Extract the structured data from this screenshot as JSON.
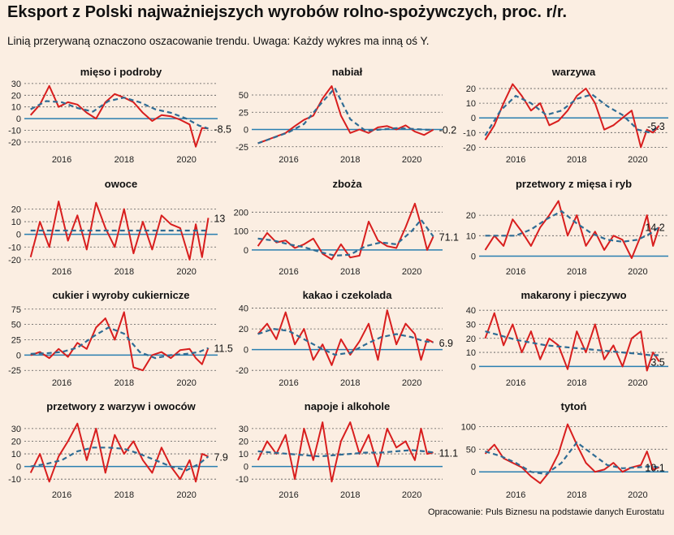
{
  "header": {
    "title": "Eksport z Polski najważniejszych wyrobów rolno-spożywczych, proc. r/r.",
    "subtitle": "Linią przerywaną oznaczono oszacowanie trendu. Uwaga: Każdy wykres ma inną oś Y.",
    "source": "Opracowanie: Puls Biznesu na podstawie danych Eurostatu"
  },
  "colors": {
    "actual_line": "#d81e1e",
    "trend_line": "#2f6c94",
    "zero_line": "#2a7fb0",
    "grid": "#555555",
    "background": "#fbeee2"
  },
  "chart_data": [
    {
      "type": "line",
      "title": "mięso i podroby",
      "end_label": "-8.5",
      "yticks": [
        -20,
        -10,
        0,
        10,
        20,
        30
      ],
      "ylim": [
        -27,
        32
      ],
      "xticks": [
        "2016",
        "2018",
        "2020"
      ],
      "actual": {
        "x": [
          2015.0,
          2015.3,
          2015.6,
          2015.9,
          2016.2,
          2016.5,
          2016.8,
          2017.1,
          2017.4,
          2017.7,
          2018.0,
          2018.3,
          2018.6,
          2018.9,
          2019.2,
          2019.5,
          2019.8,
          2020.1,
          2020.3,
          2020.5,
          2020.7
        ],
        "y": [
          3,
          12,
          28,
          10,
          14,
          12,
          5,
          0,
          14,
          21,
          18,
          14,
          5,
          -2,
          3,
          2,
          -1,
          -5,
          -24,
          -8,
          -8.5
        ]
      },
      "trend": {
        "x": [
          2015.0,
          2015.5,
          2016.0,
          2016.5,
          2017.0,
          2017.5,
          2018.0,
          2018.5,
          2019.0,
          2019.5,
          2020.0,
          2020.4,
          2020.7
        ],
        "y": [
          8,
          15,
          14,
          9,
          6,
          15,
          18,
          14,
          8,
          5,
          0,
          -6,
          -8.5
        ]
      }
    },
    {
      "type": "line",
      "title": "nabiał",
      "end_label": "-0.2",
      "yticks": [
        -25,
        0,
        25,
        50
      ],
      "ylim": [
        -30,
        70
      ],
      "xticks": [
        "2016",
        "2018",
        "2020"
      ],
      "actual": {
        "x": [
          2015.0,
          2015.3,
          2015.6,
          2015.9,
          2016.2,
          2016.5,
          2016.8,
          2017.1,
          2017.4,
          2017.7,
          2018.0,
          2018.3,
          2018.6,
          2018.9,
          2019.2,
          2019.5,
          2019.8,
          2020.1,
          2020.4,
          2020.7
        ],
        "y": [
          -20,
          -15,
          -10,
          -5,
          5,
          14,
          20,
          45,
          63,
          20,
          -5,
          0,
          -5,
          3,
          5,
          0,
          6,
          -3,
          -8,
          -0.2
        ]
      },
      "trend": {
        "x": [
          2015.0,
          2015.5,
          2016.0,
          2016.5,
          2017.0,
          2017.5,
          2018.0,
          2018.5,
          2019.0,
          2019.5,
          2020.0,
          2020.5,
          2020.7
        ],
        "y": [
          -20,
          -12,
          -4,
          8,
          35,
          60,
          15,
          -2,
          0,
          2,
          1,
          -0.5,
          -0.2
        ]
      }
    },
    {
      "type": "line",
      "title": "warzywa",
      "end_label": "-5.3",
      "yticks": [
        -20,
        -10,
        0,
        10,
        20
      ],
      "ylim": [
        -22,
        25
      ],
      "xticks": [
        "2016",
        "2018",
        "2020"
      ],
      "actual": {
        "x": [
          2015.0,
          2015.3,
          2015.6,
          2015.9,
          2016.2,
          2016.5,
          2016.8,
          2017.1,
          2017.4,
          2017.7,
          2018.0,
          2018.3,
          2018.6,
          2018.9,
          2019.2,
          2019.5,
          2019.8,
          2020.1,
          2020.3,
          2020.5,
          2020.7
        ],
        "y": [
          -15,
          -5,
          10,
          23,
          15,
          5,
          10,
          -5,
          -2,
          5,
          15,
          20,
          10,
          -8,
          -5,
          0,
          5,
          -20,
          -8,
          -10,
          -5.3
        ]
      },
      "trend": {
        "x": [
          2015.0,
          2015.5,
          2016.0,
          2016.5,
          2017.0,
          2017.5,
          2018.0,
          2018.5,
          2019.0,
          2019.5,
          2020.0,
          2020.4,
          2020.7
        ],
        "y": [
          -12,
          5,
          15,
          10,
          2,
          5,
          13,
          16,
          8,
          2,
          -8,
          -10,
          -5.3
        ]
      }
    },
    {
      "type": "line",
      "title": "owoce",
      "end_label": "13",
      "yticks": [
        -20,
        -10,
        0,
        10,
        20
      ],
      "ylim": [
        -22,
        28
      ],
      "xticks": [
        "2016",
        "2018",
        "2020"
      ],
      "actual": {
        "x": [
          2015.0,
          2015.3,
          2015.6,
          2015.9,
          2016.2,
          2016.5,
          2016.8,
          2017.1,
          2017.4,
          2017.7,
          2018.0,
          2018.3,
          2018.6,
          2018.9,
          2019.2,
          2019.5,
          2019.8,
          2020.1,
          2020.3,
          2020.5,
          2020.7
        ],
        "y": [
          -18,
          10,
          -10,
          26,
          -5,
          15,
          -12,
          25,
          5,
          -10,
          20,
          -15,
          10,
          -12,
          15,
          8,
          5,
          -20,
          8,
          -18,
          13
        ]
      },
      "trend": {
        "x": [
          2015.0,
          2016.0,
          2017.0,
          2018.0,
          2019.0,
          2020.0,
          2020.7
        ],
        "y": [
          3,
          3,
          3,
          3,
          3,
          3,
          3
        ]
      }
    },
    {
      "type": "line",
      "title": "zboża",
      "end_label": "71.1",
      "yticks": [
        0,
        100,
        200
      ],
      "ylim": [
        -65,
        270
      ],
      "xticks": [
        "2016",
        "2018",
        "2020"
      ],
      "actual": {
        "x": [
          2015.0,
          2015.3,
          2015.6,
          2015.9,
          2016.2,
          2016.5,
          2016.8,
          2017.1,
          2017.4,
          2017.7,
          2018.0,
          2018.3,
          2018.6,
          2018.9,
          2019.2,
          2019.5,
          2019.8,
          2020.1,
          2020.3,
          2020.5,
          2020.7
        ],
        "y": [
          20,
          90,
          40,
          50,
          10,
          30,
          60,
          -20,
          -50,
          30,
          -40,
          -30,
          150,
          50,
          20,
          10,
          120,
          245,
          130,
          0,
          71.1
        ]
      },
      "trend": {
        "x": [
          2015.0,
          2015.5,
          2016.0,
          2016.5,
          2017.0,
          2017.5,
          2018.0,
          2018.5,
          2019.0,
          2019.5,
          2020.0,
          2020.3,
          2020.7
        ],
        "y": [
          60,
          50,
          30,
          15,
          -10,
          -30,
          -25,
          20,
          40,
          30,
          100,
          160,
          71.1
        ]
      }
    },
    {
      "type": "line",
      "title": "przetwory z mięsa i ryb",
      "end_label": "14.2",
      "yticks": [
        0,
        10,
        20
      ],
      "ylim": [
        -3,
        28
      ],
      "xticks": [
        "2016",
        "2018",
        "2020"
      ],
      "actual": {
        "x": [
          2015.0,
          2015.3,
          2015.6,
          2015.9,
          2016.2,
          2016.5,
          2016.8,
          2017.1,
          2017.4,
          2017.7,
          2018.0,
          2018.3,
          2018.6,
          2018.9,
          2019.2,
          2019.5,
          2019.8,
          2020.1,
          2020.3,
          2020.5,
          2020.7
        ],
        "y": [
          3,
          10,
          5,
          18,
          12,
          5,
          14,
          20,
          27,
          10,
          20,
          5,
          12,
          3,
          10,
          8,
          -1,
          10,
          20,
          5,
          14.2
        ]
      },
      "trend": {
        "x": [
          2015.0,
          2015.5,
          2016.0,
          2016.5,
          2017.0,
          2017.5,
          2018.0,
          2018.5,
          2019.0,
          2019.5,
          2020.0,
          2020.4,
          2020.7
        ],
        "y": [
          10,
          10,
          10,
          13,
          18,
          22,
          16,
          11,
          8,
          7,
          8,
          11,
          14.2
        ]
      }
    },
    {
      "type": "line",
      "title": "cukier i wyroby cukiernicze",
      "end_label": "11.5",
      "yticks": [
        -25,
        0,
        25,
        50,
        75
      ],
      "ylim": [
        -30,
        80
      ],
      "xticks": [
        "2016",
        "2018",
        "2020"
      ],
      "actual": {
        "x": [
          2015.0,
          2015.3,
          2015.6,
          2015.9,
          2016.2,
          2016.5,
          2016.8,
          2017.1,
          2017.4,
          2017.7,
          2018.0,
          2018.3,
          2018.6,
          2018.9,
          2019.2,
          2019.5,
          2019.8,
          2020.1,
          2020.3,
          2020.5,
          2020.7
        ],
        "y": [
          0,
          5,
          -5,
          10,
          -3,
          20,
          10,
          45,
          60,
          25,
          70,
          -20,
          -25,
          0,
          5,
          -5,
          8,
          10,
          -5,
          -15,
          11.5
        ]
      },
      "trend": {
        "x": [
          2015.0,
          2015.5,
          2016.0,
          2016.5,
          2017.0,
          2017.5,
          2018.0,
          2018.5,
          2019.0,
          2019.5,
          2020.0,
          2020.4,
          2020.7
        ],
        "y": [
          2,
          3,
          5,
          12,
          30,
          45,
          35,
          5,
          -5,
          0,
          2,
          5,
          11.5
        ]
      }
    },
    {
      "type": "line",
      "title": "kakao i czekolada",
      "end_label": "6.9",
      "yticks": [
        -20,
        0,
        20,
        40
      ],
      "ylim": [
        -23,
        42
      ],
      "xticks": [
        "2016",
        "2018",
        "2020"
      ],
      "actual": {
        "x": [
          2015.0,
          2015.3,
          2015.6,
          2015.9,
          2016.2,
          2016.5,
          2016.8,
          2017.1,
          2017.4,
          2017.7,
          2018.0,
          2018.3,
          2018.6,
          2018.9,
          2019.2,
          2019.5,
          2019.8,
          2020.1,
          2020.3,
          2020.5,
          2020.7
        ],
        "y": [
          15,
          25,
          10,
          36,
          5,
          20,
          -10,
          5,
          -15,
          10,
          -5,
          8,
          25,
          -10,
          38,
          5,
          25,
          15,
          -10,
          10,
          6.9
        ]
      },
      "trend": {
        "x": [
          2015.0,
          2015.5,
          2016.0,
          2016.5,
          2017.0,
          2017.5,
          2018.0,
          2018.5,
          2019.0,
          2019.5,
          2020.0,
          2020.4,
          2020.7
        ],
        "y": [
          15,
          20,
          18,
          10,
          2,
          -5,
          -3,
          5,
          12,
          15,
          12,
          8,
          6.9
        ]
      }
    },
    {
      "type": "line",
      "title": "makarony i pieczywo",
      "end_label": "3.5",
      "yticks": [
        0,
        10,
        20,
        30,
        40
      ],
      "ylim": [
        -5,
        43
      ],
      "xticks": [
        "2016",
        "2018",
        "2020"
      ],
      "actual": {
        "x": [
          2015.0,
          2015.3,
          2015.6,
          2015.9,
          2016.2,
          2016.5,
          2016.8,
          2017.1,
          2017.4,
          2017.7,
          2018.0,
          2018.3,
          2018.6,
          2018.9,
          2019.2,
          2019.5,
          2019.8,
          2020.1,
          2020.3,
          2020.5,
          2020.7
        ],
        "y": [
          20,
          38,
          15,
          30,
          10,
          25,
          5,
          20,
          15,
          -2,
          25,
          10,
          30,
          5,
          15,
          0,
          20,
          25,
          -3,
          10,
          3.5
        ]
      },
      "trend": {
        "x": [
          2015.0,
          2015.5,
          2016.0,
          2016.5,
          2017.0,
          2017.5,
          2018.0,
          2018.5,
          2019.0,
          2019.5,
          2020.0,
          2020.4,
          2020.7
        ],
        "y": [
          25,
          22,
          19,
          17,
          15,
          14,
          13,
          12,
          11,
          10,
          9,
          8,
          8
        ]
      }
    },
    {
      "type": "line",
      "title": "przetwory z warzyw i owoców",
      "end_label": "7.9",
      "yticks": [
        -10,
        0,
        10,
        20,
        30
      ],
      "ylim": [
        -15,
        37
      ],
      "xticks": [
        "2016",
        "2018",
        "2020"
      ],
      "actual": {
        "x": [
          2015.0,
          2015.3,
          2015.6,
          2015.9,
          2016.2,
          2016.5,
          2016.8,
          2017.1,
          2017.4,
          2017.7,
          2018.0,
          2018.3,
          2018.6,
          2018.9,
          2019.2,
          2019.5,
          2019.8,
          2020.1,
          2020.3,
          2020.5,
          2020.7
        ],
        "y": [
          -5,
          10,
          -12,
          8,
          20,
          34,
          5,
          30,
          -5,
          25,
          10,
          20,
          5,
          -5,
          15,
          0,
          -10,
          5,
          -12,
          10,
          7.9
        ]
      },
      "trend": {
        "x": [
          2015.0,
          2015.5,
          2016.0,
          2016.5,
          2017.0,
          2017.5,
          2018.0,
          2018.5,
          2019.0,
          2019.5,
          2020.0,
          2020.4,
          2020.7
        ],
        "y": [
          0,
          2,
          5,
          12,
          15,
          15,
          14,
          10,
          5,
          0,
          -3,
          2,
          7.9
        ]
      }
    },
    {
      "type": "line",
      "title": "napoje i alkohole",
      "end_label": "11.1",
      "yticks": [
        -10,
        0,
        10,
        20,
        30
      ],
      "ylim": [
        -15,
        37
      ],
      "xticks": [
        "2016",
        "2018",
        "2020"
      ],
      "actual": {
        "x": [
          2015.0,
          2015.3,
          2015.6,
          2015.9,
          2016.2,
          2016.5,
          2016.8,
          2017.1,
          2017.4,
          2017.7,
          2018.0,
          2018.3,
          2018.6,
          2018.9,
          2019.2,
          2019.5,
          2019.8,
          2020.1,
          2020.3,
          2020.5,
          2020.7
        ],
        "y": [
          5,
          20,
          10,
          25,
          -10,
          30,
          5,
          35,
          -12,
          20,
          35,
          10,
          25,
          0,
          30,
          15,
          20,
          5,
          30,
          10,
          11.1
        ]
      },
      "trend": {
        "x": [
          2015.0,
          2015.5,
          2016.0,
          2016.5,
          2017.0,
          2017.5,
          2018.0,
          2018.5,
          2019.0,
          2019.5,
          2020.0,
          2020.4,
          2020.7
        ],
        "y": [
          12,
          11,
          10,
          9,
          8,
          9,
          10,
          11,
          11,
          12,
          13,
          12,
          11.1
        ]
      }
    },
    {
      "type": "line",
      "title": "tytoń",
      "end_label": "10.1",
      "yticks": [
        0,
        50,
        100
      ],
      "ylim": [
        -30,
        115
      ],
      "xticks": [
        "2016",
        "2018",
        "2020"
      ],
      "actual": {
        "x": [
          2015.0,
          2015.3,
          2015.6,
          2015.9,
          2016.2,
          2016.5,
          2016.8,
          2017.1,
          2017.4,
          2017.7,
          2018.0,
          2018.3,
          2018.6,
          2018.9,
          2019.2,
          2019.5,
          2019.8,
          2020.1,
          2020.3,
          2020.5,
          2020.7
        ],
        "y": [
          40,
          60,
          30,
          20,
          10,
          -10,
          -25,
          0,
          40,
          105,
          60,
          20,
          0,
          5,
          20,
          0,
          10,
          15,
          45,
          5,
          10.1
        ]
      },
      "trend": {
        "x": [
          2015.0,
          2015.5,
          2016.0,
          2016.5,
          2017.0,
          2017.5,
          2018.0,
          2018.5,
          2019.0,
          2019.5,
          2020.0,
          2020.4,
          2020.7
        ],
        "y": [
          45,
          35,
          20,
          0,
          -5,
          20,
          65,
          40,
          15,
          8,
          10,
          12,
          10.1
        ]
      }
    }
  ]
}
